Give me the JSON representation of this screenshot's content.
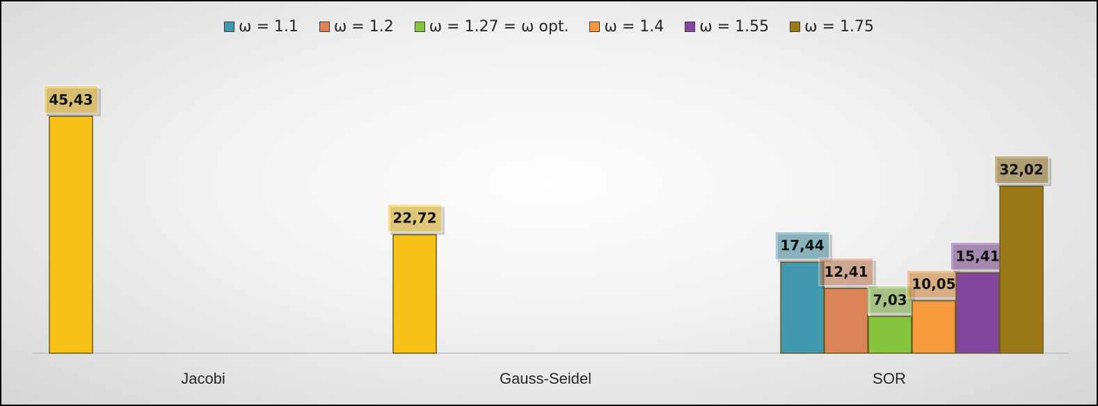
{
  "chart_data": {
    "type": "bar",
    "categories": [
      "Jacobi",
      "Gauss-Seidel",
      "SOR"
    ],
    "ylim": [
      0,
      50
    ],
    "grid": false,
    "legend_placement": "top",
    "series": [
      {
        "name": "ω = 1.1",
        "color": "#4199b0",
        "values": [
          null,
          null,
          17.44
        ],
        "labels": [
          "",
          "",
          "17,44"
        ]
      },
      {
        "name": "ω = 1.2",
        "color": "#db8457",
        "values": [
          null,
          null,
          12.41
        ],
        "labels": [
          "",
          "",
          "12,41"
        ]
      },
      {
        "name": "ω = 1.27 = ω opt.",
        "color": "#86c53d",
        "values": [
          null,
          null,
          7.03
        ],
        "labels": [
          "",
          "",
          "7,03"
        ]
      },
      {
        "name": "ω = 1.4",
        "color": "#f49a3c",
        "values": [
          null,
          null,
          10.05
        ],
        "labels": [
          "",
          "",
          "10,05"
        ]
      },
      {
        "name": "ω = 1.55",
        "color": "#8447a0",
        "values": [
          null,
          null,
          15.41
        ],
        "labels": [
          "",
          "",
          "15,41"
        ]
      },
      {
        "name": "ω = 1.75",
        "color": "#9b7817",
        "values": [
          null,
          null,
          32.02
        ],
        "labels": [
          "",
          "",
          "32,02"
        ]
      }
    ],
    "single_bars": [
      {
        "category": "Jacobi",
        "value": 45.43,
        "label": "45,43",
        "color": "#f8c117"
      },
      {
        "category": "Gauss-Seidel",
        "value": 22.72,
        "label": "22,72",
        "color": "#f8c117"
      }
    ]
  }
}
